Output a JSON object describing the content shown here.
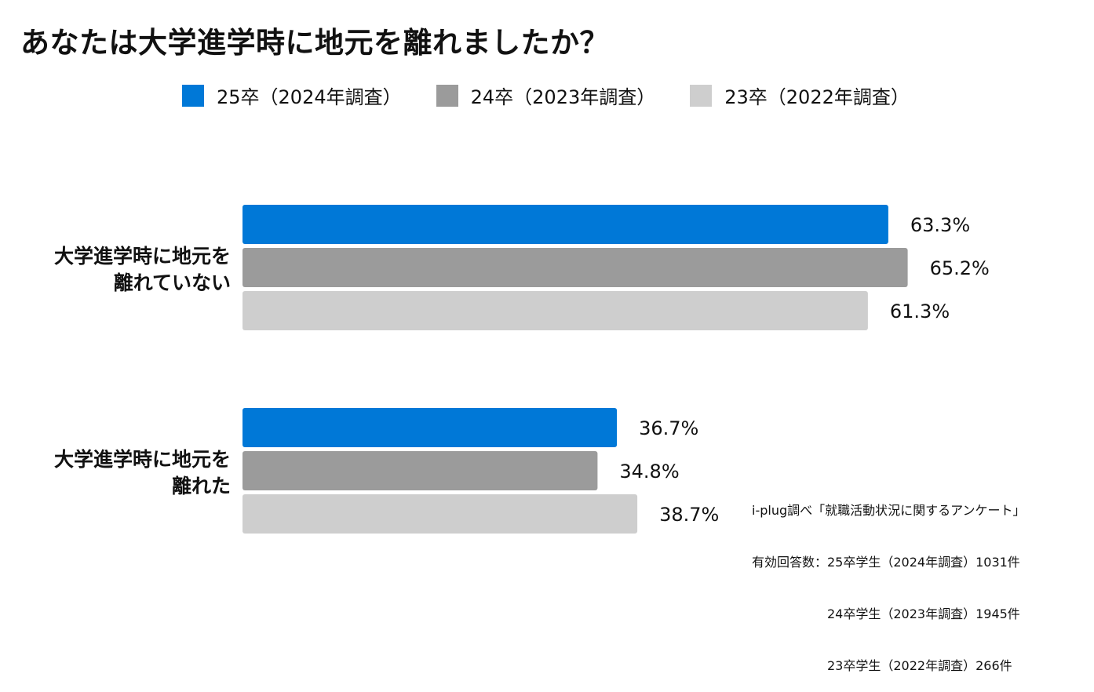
{
  "title": "あなたは大学進学時に地元を離れましたか？",
  "chart_data": {
    "type": "bar",
    "orientation": "horizontal",
    "title": "あなたは大学進学時に地元を離れましたか？",
    "categories": [
      [
        "大学進学時に地元を",
        "離れていない"
      ],
      [
        "大学進学時に地元を",
        "離れた"
      ]
    ],
    "series": [
      {
        "name": "25卒（2024年調査）",
        "color": "#0078D7",
        "values": [
          63.3,
          36.7
        ],
        "labels": [
          "63.3%",
          "36.7%"
        ]
      },
      {
        "name": "24卒（2023年調査）",
        "color": "#9B9B9B",
        "values": [
          65.2,
          34.8
        ],
        "labels": [
          "65.2%",
          "34.8%"
        ]
      },
      {
        "name": "23卒（2022年調査）",
        "color": "#CECECE",
        "values": [
          61.3,
          38.7
        ],
        "labels": [
          "61.3%",
          "38.7%"
        ]
      }
    ],
    "xlim": [
      0,
      100
    ],
    "unit": "%",
    "legend": "top"
  },
  "note": {
    "lines": [
      "i-plug調べ「就職活動状況に関するアンケート」",
      "有効回答数：25卒学生（2024年調査）1031件",
      "　　　　　　24卒学生（2023年調査）1945件",
      "　　　　　　23卒学生（2022年調査）266件"
    ]
  }
}
